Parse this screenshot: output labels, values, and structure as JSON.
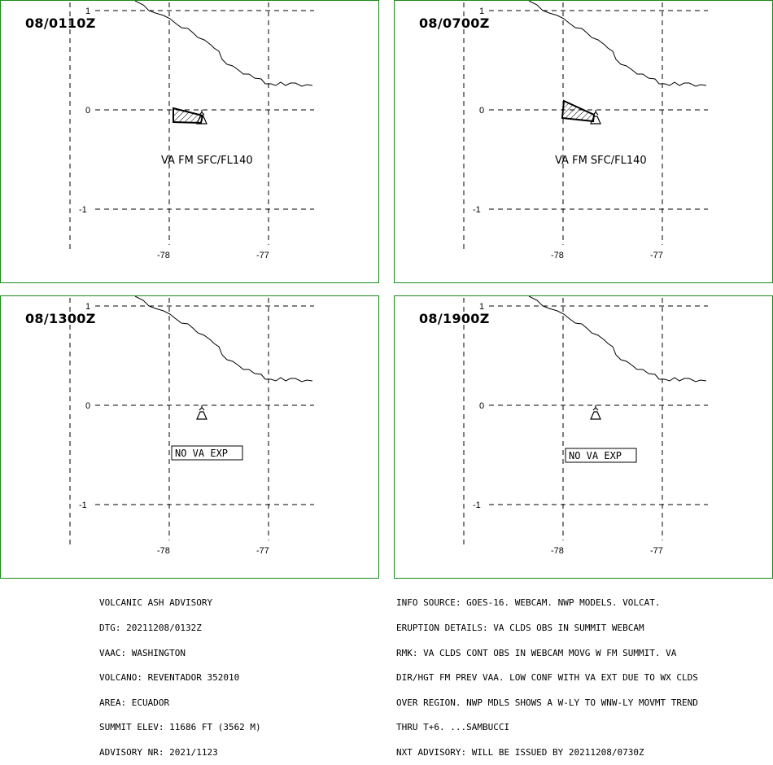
{
  "panels": [
    {
      "time": "08/0110Z",
      "label": "VA FM SFC/FL140",
      "ash": "shaded",
      "no_va": ""
    },
    {
      "time": "08/0700Z",
      "label": "VA FM SFC/FL140",
      "ash": "shaded",
      "no_va": ""
    },
    {
      "time": "08/1300Z",
      "label": "",
      "ash": "none",
      "no_va": "NO VA EXP"
    },
    {
      "time": "08/1900Z",
      "label": "",
      "ash": "none",
      "no_va": "NO VA EXP"
    }
  ],
  "axes": {
    "lat_labels": [
      "1",
      "0",
      "-1"
    ],
    "lon_labels": [
      "-78",
      "-77"
    ]
  },
  "advisory_left": [
    "VOLCANIC ASH ADVISORY",
    "DTG: 20211208/0132Z",
    "VAAC: WASHINGTON",
    "VOLCANO: REVENTADOR 352010",
    "AREA: ECUADOR",
    "SUMMIT ELEV: 11686 FT (3562 M)",
    "ADVISORY NR: 2021/1123"
  ],
  "advisory_right": [
    "INFO SOURCE: GOES-16. WEBCAM. NWP MODELS. VOLCAT.",
    "ERUPTION DETAILS: VA CLDS OBS IN SUMMIT WEBCAM",
    "RMK: VA CLDS CONT OBS IN WEBCAM MOVG W FM SUMMIT. VA",
    "DIR/HGT FM PREV VAA. LOW CONF WITH VA EXT DUE TO WX CLDS",
    "OVER REGION. NWP MDLS SHOWS A W-LY TO WNW-LY MOVMT TREND",
    "THRU T+6. ...SAMBUCCI",
    "NXT ADVISORY: WILL BE ISSUED BY 20211208/0730Z"
  ],
  "colors": {
    "border": "#1a8a1a",
    "lines": "#000000"
  }
}
